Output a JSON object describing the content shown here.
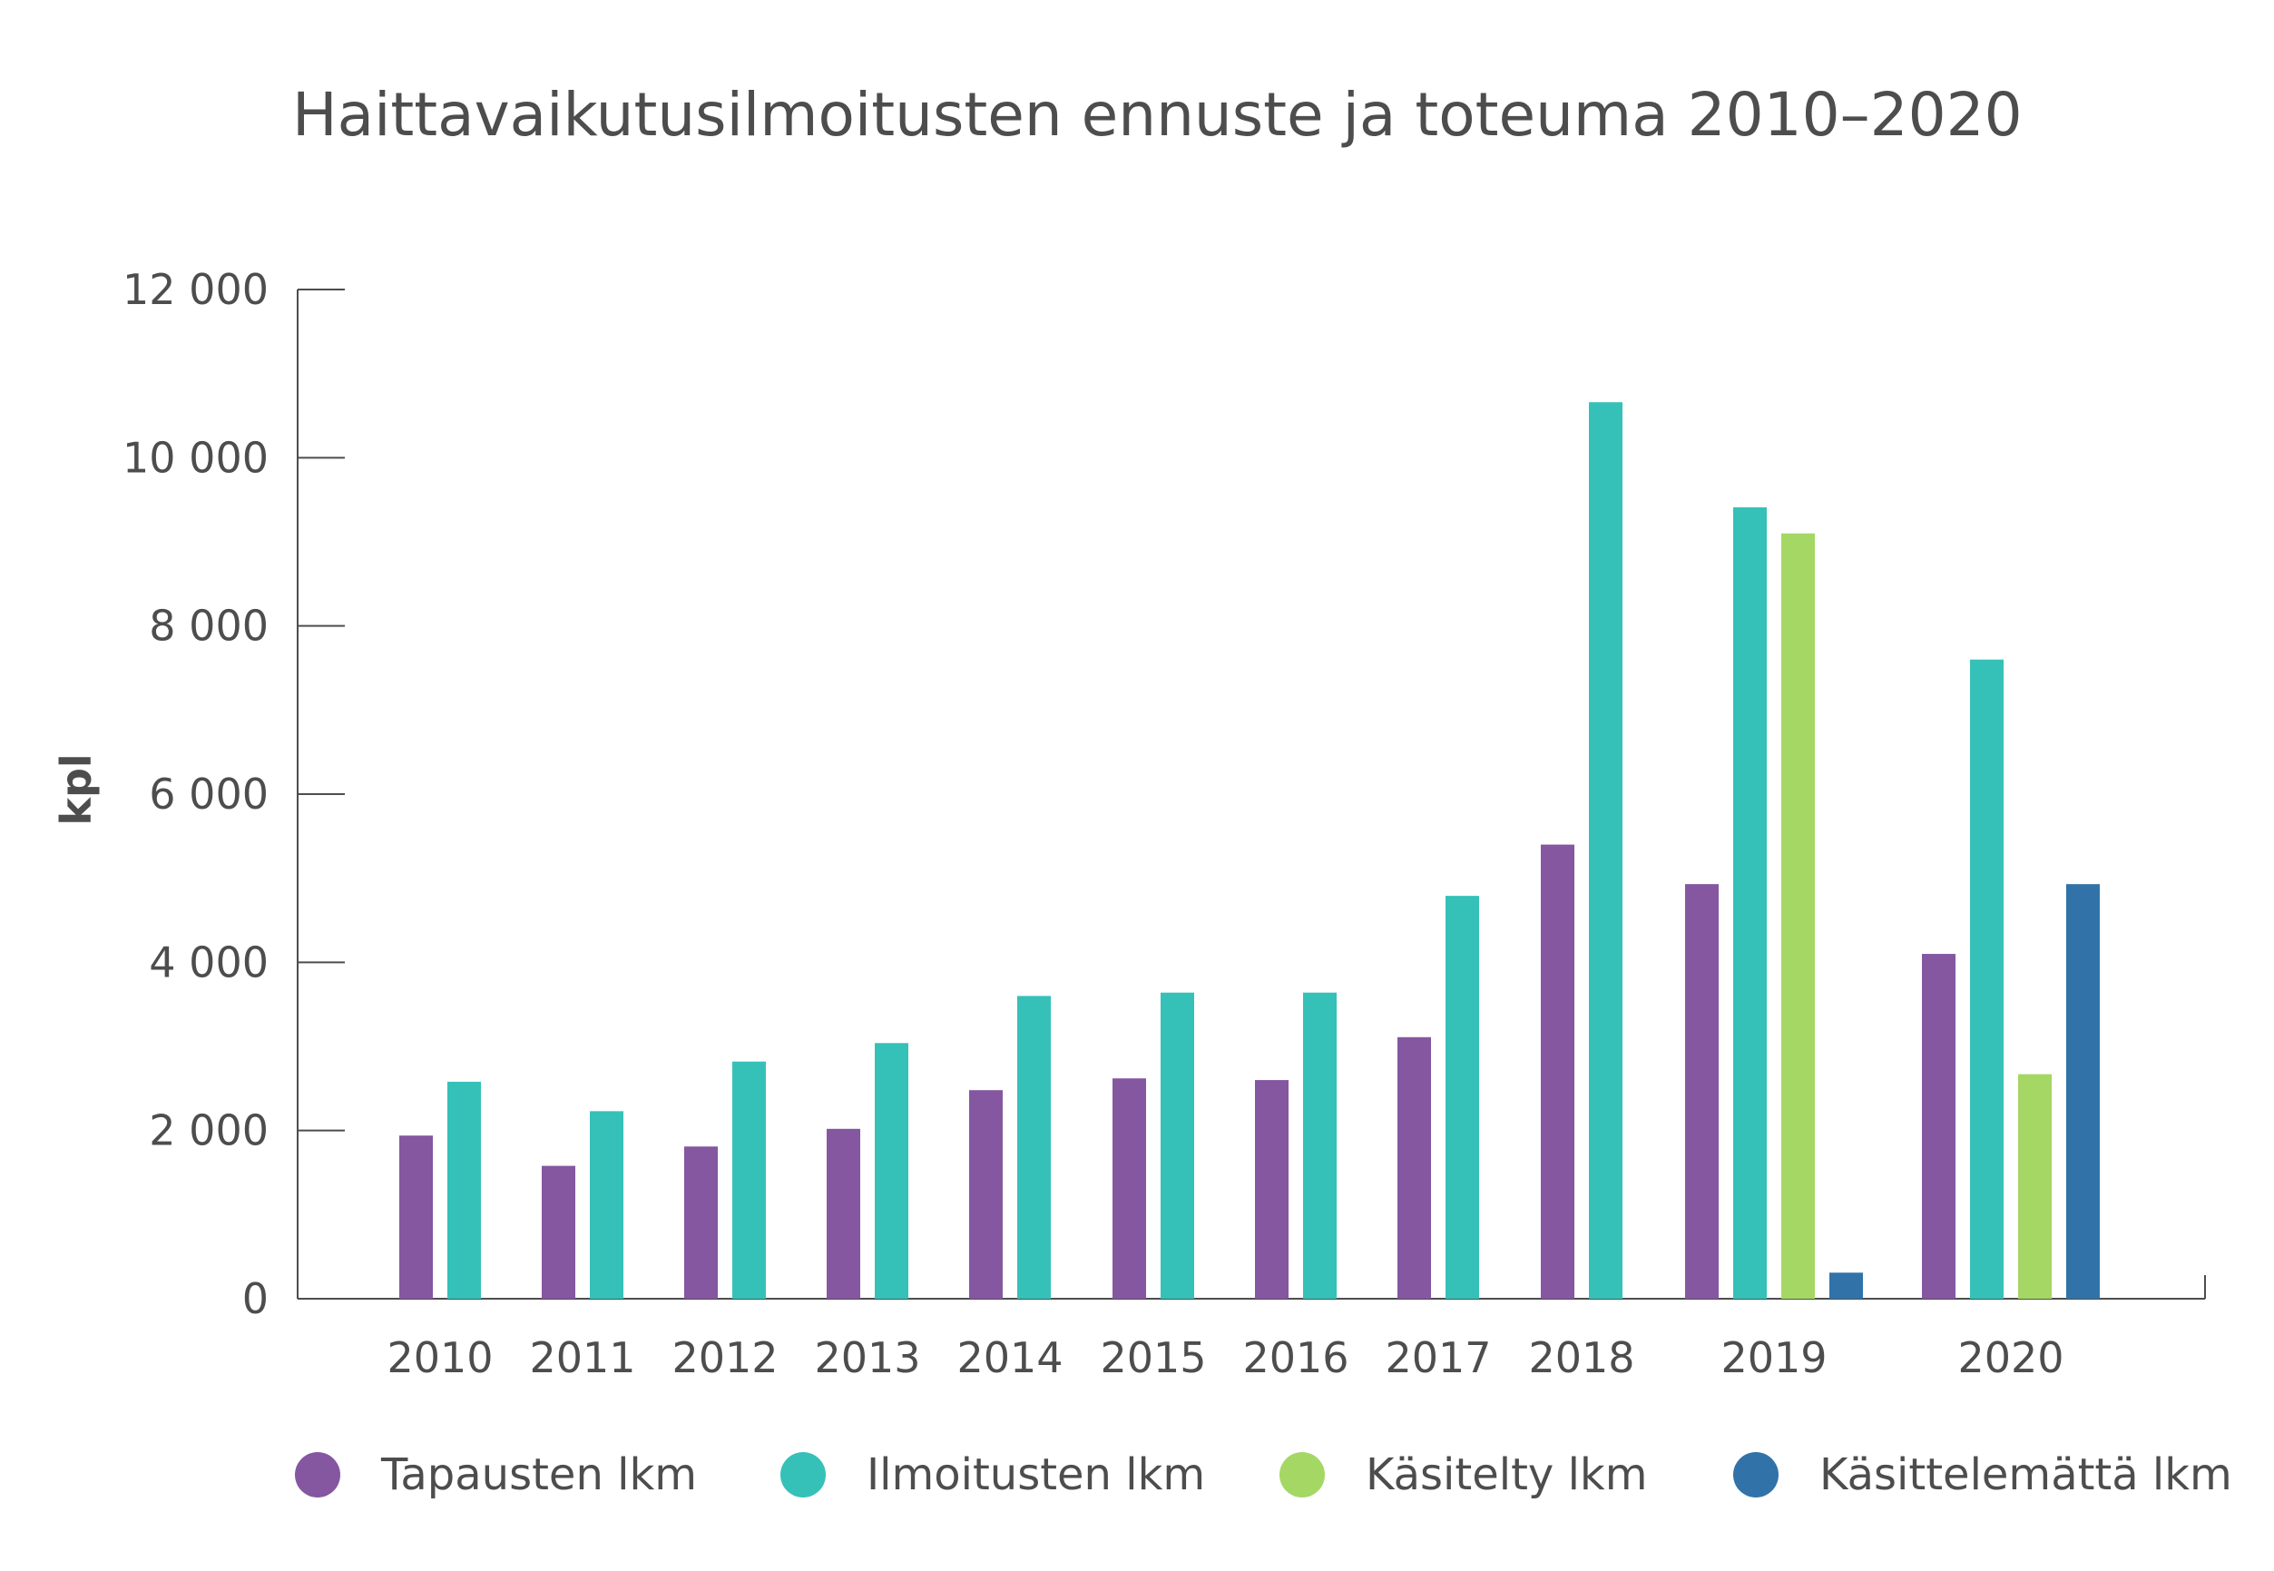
{
  "chart_data": {
    "type": "bar",
    "title": "Haittavaikutusilmoitusten ennuste ja toteuma 2010–2020",
    "ylabel": "kpl",
    "xlabel": "",
    "ylim": [
      0,
      12000
    ],
    "yticks": [
      0,
      2000,
      4000,
      6000,
      8000,
      10000,
      12000
    ],
    "ytick_labels": [
      "0",
      "2 000",
      "4 000",
      "6 000",
      "8 000",
      "10 000",
      "12 000"
    ],
    "categories": [
      "2010",
      "2011",
      "2012",
      "2013",
      "2014",
      "2015",
      "2016",
      "2017",
      "2018",
      "2019",
      "2020"
    ],
    "grid": false,
    "legend_position": "bottom",
    "series": [
      {
        "name": "Tapausten lkm",
        "color": "#8457a0",
        "values": [
          1940,
          1580,
          1810,
          2020,
          2480,
          2620,
          2600,
          3110,
          5400,
          4930,
          4100
        ]
      },
      {
        "name": "Ilmoitusten lkm",
        "color": "#35c1b8",
        "values": [
          2580,
          2230,
          2820,
          3040,
          3600,
          3640,
          3640,
          4790,
          10660,
          9410,
          7600
        ]
      },
      {
        "name": "Käsitelty lkm",
        "color": "#a5d765",
        "values": [
          null,
          null,
          null,
          null,
          null,
          null,
          null,
          null,
          null,
          9100,
          2670
        ]
      },
      {
        "name": "Käsittelemättä lkm",
        "color": "#3173a8",
        "values": [
          null,
          null,
          null,
          null,
          null,
          null,
          null,
          null,
          null,
          310,
          4930
        ]
      }
    ]
  }
}
